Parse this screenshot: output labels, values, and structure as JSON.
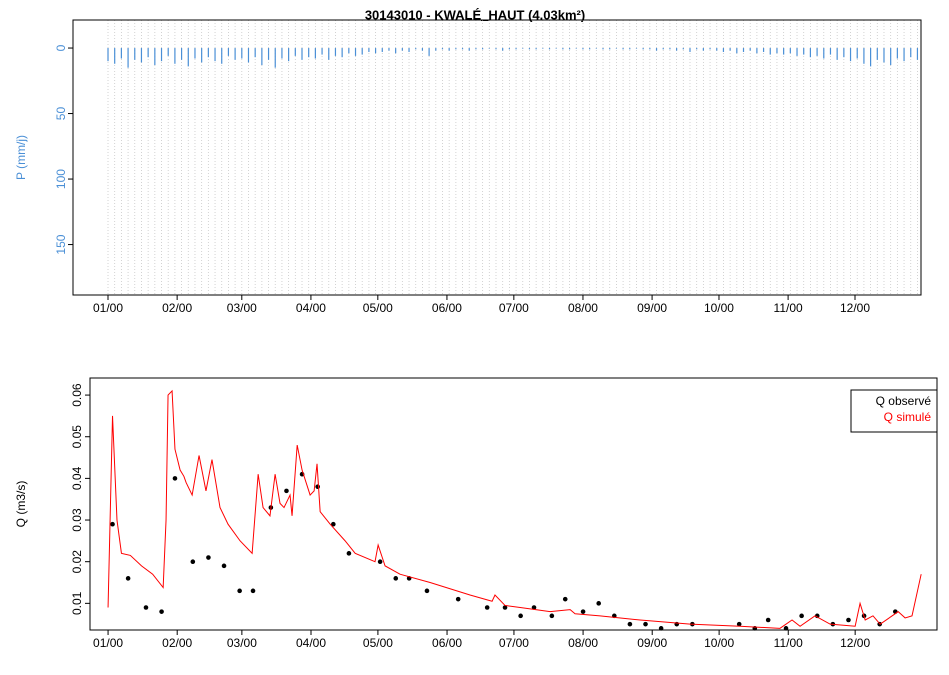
{
  "chart_data": [
    {
      "type": "bar",
      "title": "30143010 - KWALÉ_HAUT (4.03km²)",
      "y_axis_label": "P (mm/j)",
      "color": "#4a8fd6",
      "x": [
        0,
        3,
        6,
        9,
        12,
        15,
        18,
        21,
        24,
        27,
        30,
        33,
        36,
        39,
        42,
        45,
        48,
        51,
        54,
        57,
        60,
        63,
        66,
        69,
        72,
        75,
        78,
        81,
        84,
        87,
        90,
        93,
        96,
        99,
        102,
        105,
        108,
        111,
        114,
        117,
        120,
        123,
        126,
        129,
        132,
        135,
        138,
        141,
        144,
        147,
        150,
        153,
        156,
        159,
        162,
        165,
        168,
        171,
        174,
        177,
        180,
        183,
        186,
        189,
        192,
        195,
        198,
        201,
        204,
        207,
        210,
        213,
        216,
        219,
        222,
        225,
        228,
        231,
        234,
        237,
        240,
        243,
        246,
        249,
        252,
        255,
        258,
        261,
        264,
        267,
        270,
        273,
        276,
        279,
        282,
        285,
        288,
        291,
        294,
        297,
        300,
        303,
        306,
        309,
        312,
        315,
        318,
        321,
        324,
        327,
        330,
        333,
        336,
        339,
        342,
        345,
        348,
        351,
        354,
        357,
        360,
        363
      ],
      "values": [
        10,
        12,
        8,
        15,
        9,
        11,
        7,
        13,
        10,
        6,
        12,
        9,
        14,
        8,
        11,
        7,
        10,
        12,
        6,
        9,
        8,
        11,
        7,
        13,
        9,
        15,
        8,
        10,
        6,
        9,
        7,
        8,
        5,
        9,
        6,
        7,
        4,
        6,
        5,
        3,
        4,
        3,
        2,
        4,
        2,
        3,
        1,
        2,
        6,
        2,
        1,
        2,
        1,
        1,
        2,
        1,
        1,
        0.5,
        1,
        2,
        1,
        1,
        0.5,
        1,
        1,
        0.5,
        1,
        0.5,
        1,
        1,
        0.5,
        1,
        1,
        0.5,
        1,
        1,
        0.5,
        1,
        1,
        0.5,
        1,
        1,
        2,
        1,
        1,
        2,
        1,
        3,
        1,
        2,
        1,
        2,
        3,
        2,
        4,
        3,
        2,
        4,
        3,
        5,
        4,
        5,
        4,
        6,
        5,
        7,
        6,
        8,
        5,
        9,
        7,
        10,
        8,
        12,
        14,
        9,
        11,
        13,
        8,
        10,
        7,
        9
      ],
      "xlim": [
        -15.7,
        364.6
      ],
      "ylim": [
        188.5,
        -21.4
      ],
      "yticks": [
        0,
        50,
        100,
        150
      ],
      "xticks": [
        {
          "value": 0,
          "label": "01/00"
        },
        {
          "value": 31,
          "label": "02/00"
        },
        {
          "value": 60,
          "label": "03/00"
        },
        {
          "value": 91,
          "label": "04/00"
        },
        {
          "value": 121,
          "label": "05/00"
        },
        {
          "value": 152,
          "label": "06/00"
        },
        {
          "value": 182,
          "label": "07/00"
        },
        {
          "value": 213,
          "label": "08/00"
        },
        {
          "value": 244,
          "label": "09/00"
        },
        {
          "value": 274,
          "label": "10/00"
        },
        {
          "value": 305,
          "label": "11/00"
        },
        {
          "value": 335,
          "label": "12/00"
        }
      ],
      "grid": true
    },
    {
      "type": "line",
      "y_axis_label": "Q (m3/s)",
      "legend": "top-right",
      "xlim": [
        -8.1,
        371.7
      ],
      "ylim": [
        0.0036,
        0.0641
      ],
      "yticks": [
        0.01,
        0.02,
        0.03,
        0.04,
        0.05,
        0.06
      ],
      "xticks": [
        {
          "value": 0,
          "label": "01/00"
        },
        {
          "value": 31,
          "label": "02/00"
        },
        {
          "value": 60,
          "label": "03/00"
        },
        {
          "value": 91,
          "label": "04/00"
        },
        {
          "value": 121,
          "label": "05/00"
        },
        {
          "value": 152,
          "label": "06/00"
        },
        {
          "value": 182,
          "label": "07/00"
        },
        {
          "value": 213,
          "label": "08/00"
        },
        {
          "value": 244,
          "label": "09/00"
        },
        {
          "value": 274,
          "label": "10/00"
        },
        {
          "value": 305,
          "label": "11/00"
        },
        {
          "value": 335,
          "label": "12/00"
        }
      ],
      "grid": false,
      "series": [
        {
          "name": "Q observé",
          "color": "#000000",
          "style": "points",
          "x": [
            2,
            9,
            17,
            24,
            30,
            38,
            45,
            52,
            59,
            65,
            73,
            80,
            87,
            94,
            101,
            108,
            122,
            129,
            135,
            143,
            157,
            170,
            178,
            185,
            191,
            199,
            205,
            213,
            220,
            227,
            234,
            241,
            248,
            255,
            262,
            283,
            290,
            296,
            304,
            311,
            318,
            325,
            332,
            339,
            346,
            353
          ],
          "values": [
            0.029,
            0.016,
            0.009,
            0.008,
            0.04,
            0.02,
            0.021,
            0.019,
            0.013,
            0.013,
            0.033,
            0.037,
            0.041,
            0.038,
            0.029,
            0.022,
            0.02,
            0.016,
            0.016,
            0.013,
            0.011,
            0.009,
            0.009,
            0.007,
            0.009,
            0.007,
            0.011,
            0.008,
            0.01,
            0.007,
            0.005,
            0.005,
            0.004,
            0.005,
            0.005,
            0.005,
            0.004,
            0.006,
            0.004,
            0.007,
            0.007,
            0.005,
            0.006,
            0.007,
            0.005,
            0.008
          ]
        },
        {
          "name": "Q simulé",
          "color": "#ff0000",
          "style": "line",
          "x": [
            0,
            2,
            4,
            6,
            10,
            15,
            20,
            24.7,
            26,
            26.9,
            28.7,
            30,
            32.3,
            34,
            35,
            37.7,
            40.8,
            43.9,
            46.6,
            50.2,
            53.8,
            59.2,
            64.6,
            67.3,
            69.5,
            72.6,
            74.9,
            77.1,
            78.9,
            81.6,
            82.5,
            84.8,
            87,
            90.6,
            92.4,
            93.7,
            95.1,
            99.6,
            106.3,
            110.8,
            119.7,
            121.1,
            124.2,
            130.9,
            144.4,
            162.3,
            172.2,
            173.5,
            178,
            184.8,
            198.2,
            207.2,
            209.4,
            220.6,
            238.6,
            261,
            283.4,
            301.3,
            306.7,
            310.3,
            317,
            323.8,
            335,
            337.2,
            339.5,
            343,
            346.2,
            354.3,
            357.4,
            360.5,
            364.6
          ],
          "values": [
            0.009,
            0.055,
            0.03,
            0.022,
            0.0215,
            0.019,
            0.017,
            0.0138,
            0.03,
            0.06,
            0.061,
            0.047,
            0.042,
            0.0405,
            0.039,
            0.036,
            0.0455,
            0.037,
            0.0445,
            0.033,
            0.029,
            0.025,
            0.022,
            0.041,
            0.033,
            0.031,
            0.041,
            0.034,
            0.033,
            0.036,
            0.031,
            0.048,
            0.042,
            0.036,
            0.037,
            0.0435,
            0.032,
            0.029,
            0.025,
            0.022,
            0.02,
            0.024,
            0.019,
            0.017,
            0.015,
            0.012,
            0.0105,
            0.012,
            0.0095,
            0.009,
            0.008,
            0.0085,
            0.0075,
            0.007,
            0.006,
            0.005,
            0.0045,
            0.004,
            0.006,
            0.0045,
            0.007,
            0.005,
            0.0045,
            0.01,
            0.006,
            0.007,
            0.005,
            0.008,
            0.0065,
            0.007,
            0.017
          ]
        }
      ]
    }
  ]
}
